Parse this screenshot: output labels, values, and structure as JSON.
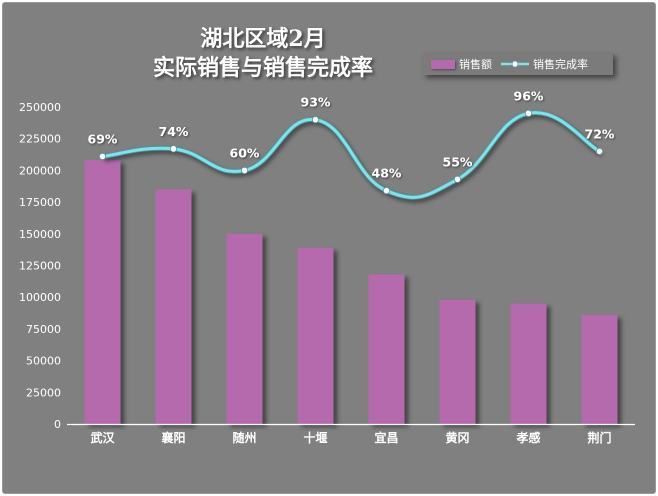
{
  "chart_data": {
    "type": "bar",
    "title_lines": [
      "湖北区域2月",
      "实际销售与销售完成率"
    ],
    "categories": [
      "武汉",
      "襄阳",
      "随州",
      "十堰",
      "宜昌",
      "黄冈",
      "孝感",
      "荆门"
    ],
    "series": [
      {
        "name": "销售额",
        "type": "bar",
        "values": [
          208000,
          185000,
          150000,
          139000,
          118000,
          98000,
          95000,
          86000
        ]
      },
      {
        "name": "销售完成率",
        "type": "line",
        "values": [
          0.69,
          0.74,
          0.6,
          0.93,
          0.48,
          0.55,
          0.96,
          0.72
        ],
        "labels": [
          "69%",
          "74%",
          "60%",
          "93%",
          "48%",
          "55%",
          "96%",
          "72%"
        ],
        "line_positions": [
          211000,
          217000,
          200000,
          240000,
          184000,
          193000,
          245000,
          215000
        ]
      }
    ],
    "y_ticks": [
      "0",
      "25000",
      "50000",
      "75000",
      "100000",
      "125000",
      "150000",
      "175000",
      "200000",
      "225000",
      "250000"
    ],
    "ylim": [
      0,
      250000
    ],
    "grid": false,
    "legend": "top-right",
    "colors": {
      "background": "#808080",
      "bar": "#b66aae",
      "line": "#7fe3ea",
      "marker": "#ffffff",
      "text": "#ffffff"
    }
  }
}
